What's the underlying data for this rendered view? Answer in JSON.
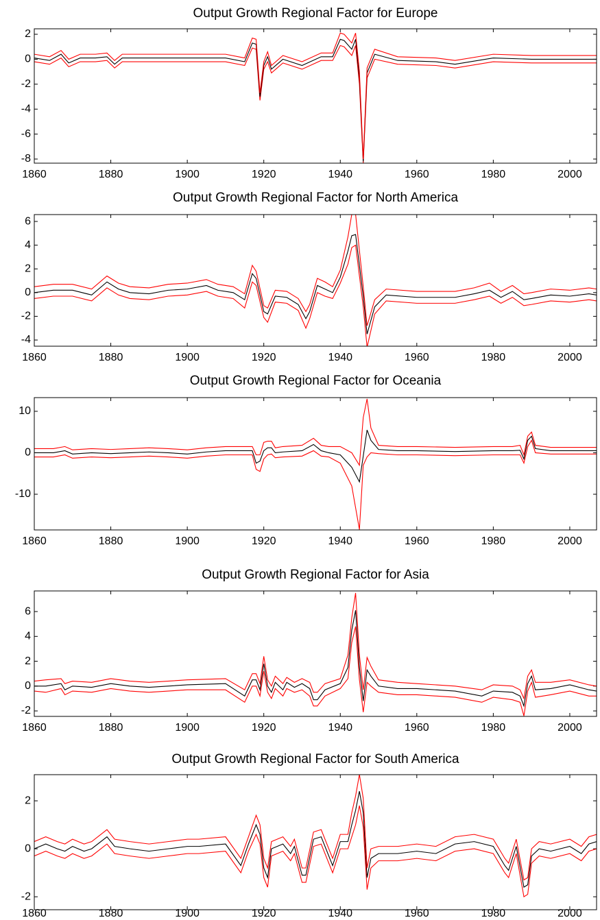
{
  "chart_data": [
    {
      "type": "line",
      "title": "Output Growth Regional Factor for Europe",
      "x": [
        1860,
        1864,
        1867,
        1869,
        1872,
        1876,
        1879,
        1881,
        1883,
        1890,
        1900,
        1910,
        1915,
        1917,
        1918,
        1919,
        1920,
        1921,
        1922,
        1925,
        1930,
        1935,
        1938,
        1940,
        1941,
        1943,
        1944,
        1945,
        1946,
        1947,
        1949,
        1955,
        1965,
        1970,
        1980,
        1990,
        2000,
        2007
      ],
      "series": [
        {
          "color": "#ff0000",
          "values": [
            -0.2,
            -0.4,
            0.1,
            -0.6,
            -0.2,
            -0.2,
            -0.1,
            -0.7,
            -0.2,
            -0.2,
            -0.2,
            -0.2,
            -0.5,
            0.9,
            0.8,
            -3.3,
            -0.8,
            -0.2,
            -1.1,
            -0.3,
            -0.8,
            -0.1,
            -0.1,
            1.1,
            1.0,
            0.3,
            1.1,
            -2.0,
            -8.3,
            -1.5,
            0,
            -0.4,
            -0.5,
            -0.7,
            -0.2,
            -0.3,
            -0.3,
            -0.3
          ]
        },
        {
          "color": "#000000",
          "values": [
            0.1,
            -0.1,
            0.4,
            -0.3,
            0.1,
            0.1,
            0.2,
            -0.4,
            0.1,
            0.1,
            0.1,
            0.1,
            -0.2,
            1.3,
            1.2,
            -3.0,
            -0.5,
            0.2,
            -0.8,
            0,
            -0.5,
            0.2,
            0.2,
            1.6,
            1.5,
            0.8,
            1.6,
            -1.5,
            -8.2,
            -1.1,
            0.4,
            -0.1,
            -0.2,
            -0.4,
            0.1,
            0,
            0,
            0
          ]
        },
        {
          "color": "#ff0000",
          "values": [
            0.4,
            0.2,
            0.7,
            0,
            0.4,
            0.4,
            0.5,
            -0.1,
            0.4,
            0.4,
            0.4,
            0.4,
            0.1,
            1.7,
            1.6,
            -2.7,
            -0.2,
            0.6,
            -0.5,
            0.3,
            -0.2,
            0.5,
            0.5,
            2.1,
            2.0,
            1.3,
            2.1,
            -1.0,
            -8.0,
            -0.7,
            0.8,
            0.2,
            0.1,
            -0.1,
            0.4,
            0.3,
            0.3,
            0.3
          ]
        }
      ],
      "xlim": [
        1860,
        2007
      ],
      "xticks": [
        1860,
        1880,
        1900,
        1920,
        1940,
        1960,
        1980,
        2000
      ],
      "ylim": [
        -8.33,
        2.44
      ],
      "yticks": [
        -8,
        -6,
        -4,
        -2,
        0,
        2
      ]
    },
    {
      "type": "line",
      "title": "Output Growth Regional Factor for North America",
      "x": [
        1860,
        1865,
        1870,
        1875,
        1879,
        1882,
        1885,
        1890,
        1895,
        1900,
        1905,
        1908,
        1912,
        1915,
        1917,
        1918,
        1920,
        1921,
        1923,
        1926,
        1929,
        1931,
        1932,
        1934,
        1936,
        1938,
        1940,
        1942,
        1943,
        1944,
        1946,
        1947,
        1949,
        1952,
        1960,
        1970,
        1975,
        1979,
        1982,
        1985,
        1988,
        1990,
        1995,
        2000,
        2005,
        2007
      ],
      "series": [
        {
          "color": "#ff0000",
          "values": [
            -0.5,
            -0.3,
            -0.3,
            -0.7,
            0.4,
            -0.2,
            -0.5,
            -0.6,
            -0.3,
            -0.2,
            0.1,
            -0.3,
            -0.5,
            -1.3,
            0.9,
            0.6,
            -2.1,
            -2.5,
            -0.8,
            -0.9,
            -1.5,
            -3.0,
            -2.2,
            0,
            -0.3,
            -0.5,
            0.8,
            2.4,
            3.8,
            4.0,
            -1.2,
            -4.6,
            -1.8,
            -0.7,
            -0.9,
            -0.9,
            -0.6,
            -0.3,
            -0.9,
            -0.4,
            -1.1,
            -1.0,
            -0.7,
            -0.8,
            -0.6,
            -0.7
          ]
        },
        {
          "color": "#000000",
          "values": [
            0,
            0.2,
            0.2,
            -0.2,
            0.9,
            0.3,
            0,
            -0.1,
            0.2,
            0.3,
            0.6,
            0.2,
            0,
            -0.6,
            1.6,
            1.2,
            -1.6,
            -1.8,
            -0.3,
            -0.4,
            -1.0,
            -2.2,
            -1.6,
            0.6,
            0.3,
            0,
            1.3,
            3.5,
            4.8,
            4.9,
            -0.3,
            -3.5,
            -1.2,
            -0.2,
            -0.4,
            -0.4,
            -0.1,
            0.2,
            -0.4,
            0.1,
            -0.6,
            -0.5,
            -0.2,
            -0.3,
            -0.1,
            -0.2
          ]
        },
        {
          "color": "#ff0000",
          "values": [
            0.5,
            0.7,
            0.7,
            0.3,
            1.4,
            0.8,
            0.5,
            0.4,
            0.7,
            0.8,
            1.1,
            0.7,
            0.5,
            -0.1,
            2.3,
            1.8,
            -1.1,
            -1.3,
            0.2,
            0.1,
            -0.5,
            -1.6,
            -1.0,
            1.2,
            0.9,
            0.5,
            1.9,
            4.7,
            6.6,
            6.6,
            0.5,
            -2.8,
            -0.6,
            0.3,
            0.1,
            0.1,
            0.4,
            0.8,
            0.1,
            0.6,
            -0.1,
            0,
            0.3,
            0.2,
            0.4,
            0.3
          ]
        }
      ],
      "xlim": [
        1860,
        2007
      ],
      "xticks": [
        1860,
        1880,
        1900,
        1920,
        1940,
        1960,
        1980,
        2000
      ],
      "ylim": [
        -4.52,
        6.58
      ],
      "yticks": [
        -4,
        -2,
        0,
        2,
        4,
        6
      ]
    },
    {
      "type": "line",
      "title": "Output Growth Regional Factor for Oceania",
      "x": [
        1860,
        1865,
        1868,
        1870,
        1875,
        1880,
        1885,
        1890,
        1895,
        1900,
        1905,
        1910,
        1915,
        1917,
        1918,
        1919,
        1920,
        1921,
        1922,
        1923,
        1925,
        1930,
        1933,
        1935,
        1937,
        1940,
        1943,
        1945,
        1946,
        1947,
        1948,
        1950,
        1955,
        1960,
        1970,
        1980,
        1985,
        1987,
        1988,
        1989,
        1990,
        1991,
        1995,
        2000,
        2007
      ],
      "series": [
        {
          "color": "#ff0000",
          "values": [
            -1,
            -1,
            -0.5,
            -1.3,
            -1,
            -1.2,
            -1,
            -0.8,
            -1,
            -1.3,
            -0.8,
            -0.5,
            -0.5,
            -0.5,
            -4,
            -4.5,
            -1.5,
            -0.5,
            -0.3,
            -1.2,
            -1,
            -0.8,
            0.5,
            -0.8,
            -1,
            -2.5,
            -8,
            -18.5,
            -3,
            -1,
            0,
            -0.2,
            -0.5,
            -0.5,
            -0.7,
            -0.5,
            -0.5,
            -0.5,
            -2.5,
            1.5,
            3,
            0,
            -0.3,
            -0.3,
            -0.3
          ]
        },
        {
          "color": "#000000",
          "values": [
            0,
            0,
            0.5,
            -0.3,
            0,
            -0.2,
            0,
            0.2,
            0,
            -0.3,
            0.2,
            0.5,
            0.5,
            0.5,
            -2.5,
            -2.0,
            0.5,
            1.2,
            1.2,
            0,
            0.2,
            0.5,
            2,
            0.5,
            0,
            -0.5,
            -3.5,
            -7,
            -0.8,
            5.5,
            3,
            0.8,
            0.5,
            0.5,
            0.3,
            0.5,
            0.5,
            0.6,
            -1.5,
            3,
            4,
            1,
            0.5,
            0.5,
            0.5
          ]
        },
        {
          "color": "#ff0000",
          "values": [
            1,
            1,
            1.5,
            0.7,
            1,
            0.8,
            1,
            1.2,
            1,
            0.7,
            1.2,
            1.5,
            1.5,
            1.5,
            -0.5,
            -0.5,
            2.5,
            2.8,
            2.8,
            1.2,
            1.5,
            1.8,
            3.5,
            1.8,
            1.5,
            1.5,
            0,
            -3,
            8.5,
            13,
            6,
            1.8,
            1.5,
            1.5,
            1.3,
            1.5,
            1.5,
            1.8,
            -0.5,
            4,
            5,
            1.8,
            1.3,
            1.3,
            1.3
          ]
        }
      ],
      "xlim": [
        1860,
        2007
      ],
      "xticks": [
        1860,
        1880,
        1900,
        1920,
        1940,
        1960,
        1980,
        2000
      ],
      "ylim": [
        -18.6,
        13.3
      ],
      "yticks": [
        -10,
        0,
        10
      ]
    },
    {
      "type": "line",
      "title": "Output Growth Regional Factor for Asia",
      "x": [
        1860,
        1863,
        1867,
        1868,
        1870,
        1875,
        1880,
        1885,
        1890,
        1900,
        1910,
        1915,
        1917,
        1918,
        1919,
        1920,
        1921,
        1922,
        1923,
        1925,
        1926,
        1928,
        1930,
        1932,
        1933,
        1934,
        1936,
        1940,
        1942,
        1943,
        1944,
        1945,
        1946,
        1947,
        1948,
        1950,
        1955,
        1960,
        1970,
        1977,
        1980,
        1985,
        1987,
        1988,
        1989,
        1990,
        1991,
        1995,
        2000,
        2005,
        2007
      ],
      "series": [
        {
          "color": "#ff0000",
          "values": [
            -0.4,
            -0.5,
            -0.2,
            -0.7,
            -0.4,
            -0.5,
            -0.2,
            -0.4,
            -0.5,
            -0.3,
            -0.3,
            -1.3,
            0,
            0,
            -0.8,
            1.2,
            -0.5,
            -1.0,
            -0.2,
            -0.8,
            -0.2,
            -0.5,
            -0.3,
            -0.8,
            -1.6,
            -1.6,
            -0.8,
            -0.2,
            0.6,
            3.5,
            4.8,
            0.5,
            -2.1,
            0.3,
            0,
            -0.5,
            -0.7,
            -0.7,
            -0.9,
            -1.3,
            -0.9,
            -1.1,
            -1.3,
            -2.4,
            -0.4,
            0.3,
            -0.9,
            -0.7,
            -0.4,
            -0.8,
            -0.8
          ]
        },
        {
          "color": "#000000",
          "values": [
            0,
            0,
            0.2,
            -0.3,
            0,
            -0.1,
            0.2,
            0,
            -0.1,
            0.1,
            0.2,
            -0.8,
            0.5,
            0.5,
            -0.3,
            1.8,
            0,
            -0.5,
            0.3,
            -0.3,
            0.3,
            -0.1,
            0.2,
            -0.2,
            -1.1,
            -1.1,
            -0.3,
            0.2,
            1.5,
            4.5,
            6.1,
            1.5,
            -1.2,
            1.3,
            0.8,
            0,
            -0.2,
            -0.2,
            -0.4,
            -0.8,
            -0.4,
            -0.5,
            -0.8,
            -1.6,
            0.2,
            0.8,
            -0.3,
            -0.2,
            0.1,
            -0.3,
            -0.4
          ]
        },
        {
          "color": "#ff0000",
          "values": [
            0.4,
            0.5,
            0.6,
            0.2,
            0.4,
            0.3,
            0.6,
            0.4,
            0.3,
            0.5,
            0.6,
            -0.3,
            1.0,
            1.0,
            0.2,
            2.4,
            0.5,
            0,
            0.8,
            0.2,
            0.7,
            0.3,
            0.6,
            0.3,
            -0.5,
            -0.5,
            0.2,
            0.6,
            2.5,
            5.5,
            7.5,
            2.5,
            -0.3,
            2.3,
            1.6,
            0.5,
            0.3,
            0.2,
            0,
            -0.3,
            0.1,
            0,
            -0.3,
            -1.0,
            0.8,
            1.3,
            0.3,
            0.3,
            0.5,
            0.1,
            0
          ]
        }
      ],
      "xlim": [
        1860,
        2007
      ],
      "xticks": [
        1860,
        1880,
        1900,
        1920,
        1940,
        1960,
        1980,
        2000
      ],
      "ylim": [
        -2.44,
        7.66
      ],
      "yticks": [
        -2,
        0,
        2,
        4,
        6
      ]
    },
    {
      "type": "line",
      "title": "Output Growth Regional Factor for South America",
      "x": [
        1860,
        1863,
        1866,
        1868,
        1870,
        1873,
        1875,
        1879,
        1881,
        1885,
        1890,
        1895,
        1900,
        1903,
        1910,
        1914,
        1916,
        1918,
        1919,
        1920,
        1921,
        1922,
        1925,
        1927,
        1928,
        1930,
        1931,
        1933,
        1935,
        1938,
        1940,
        1942,
        1943,
        1944,
        1945,
        1946,
        1947,
        1948,
        1950,
        1955,
        1960,
        1965,
        1970,
        1975,
        1980,
        1983,
        1984,
        1986,
        1988,
        1989,
        1990,
        1992,
        1995,
        2000,
        2003,
        2005,
        2007
      ],
      "series": [
        {
          "color": "#ff0000",
          "values": [
            -0.3,
            -0.1,
            -0.3,
            -0.4,
            -0.2,
            -0.4,
            -0.3,
            0.2,
            -0.2,
            -0.3,
            -0.4,
            -0.3,
            -0.2,
            -0.2,
            -0.1,
            -1.0,
            -0.1,
            0.6,
            0.2,
            -1.2,
            -1.6,
            -0.3,
            -0.1,
            -0.5,
            -0.2,
            -1.4,
            -1.4,
            0.1,
            0.2,
            -1.0,
            0,
            0,
            0.5,
            1.0,
            1.8,
            0.9,
            -1.7,
            -0.8,
            -0.5,
            -0.5,
            -0.4,
            -0.5,
            -0.1,
            0,
            -0.2,
            -1.0,
            -1.2,
            -0.2,
            -2.0,
            -1.9,
            -0.6,
            -0.3,
            -0.4,
            -0.2,
            -0.5,
            -0.1,
            0
          ]
        },
        {
          "color": "#000000",
          "values": [
            0,
            0.2,
            0,
            -0.1,
            0.1,
            -0.1,
            0,
            0.5,
            0.1,
            0,
            -0.1,
            0,
            0.1,
            0.1,
            0.2,
            -0.7,
            0.2,
            1.0,
            0.6,
            -0.8,
            -1.2,
            0,
            0.2,
            -0.2,
            0.1,
            -1.1,
            -1.1,
            0.4,
            0.5,
            -0.7,
            0.3,
            0.3,
            1.0,
            1.6,
            2.4,
            1.5,
            -1.2,
            -0.4,
            -0.2,
            -0.2,
            -0.1,
            -0.2,
            0.2,
            0.3,
            0.1,
            -0.7,
            -0.9,
            0.1,
            -1.6,
            -1.5,
            -0.3,
            0,
            -0.1,
            0.1,
            -0.2,
            0.2,
            0.3
          ]
        },
        {
          "color": "#ff0000",
          "values": [
            0.3,
            0.5,
            0.3,
            0.2,
            0.4,
            0.2,
            0.3,
            0.8,
            0.4,
            0.3,
            0.2,
            0.3,
            0.4,
            0.4,
            0.5,
            -0.4,
            0.5,
            1.4,
            1.0,
            -0.4,
            -0.8,
            0.3,
            0.5,
            0.1,
            0.4,
            -0.8,
            -0.8,
            0.7,
            0.8,
            -0.4,
            0.6,
            0.6,
            1.5,
            2.2,
            3.1,
            2.1,
            -0.8,
            0,
            0.1,
            0.1,
            0.2,
            0.1,
            0.5,
            0.6,
            0.4,
            -0.4,
            -0.6,
            0.4,
            -1.3,
            -1.2,
            0,
            0.3,
            0.2,
            0.4,
            0.1,
            0.5,
            0.6
          ]
        }
      ],
      "xlim": [
        1860,
        2007
      ],
      "xticks": [
        1860,
        1880,
        1900,
        1920,
        1940,
        1960,
        1980,
        2000
      ],
      "ylim": [
        -2.54,
        3.09
      ],
      "yticks": [
        -2,
        0,
        2
      ]
    }
  ]
}
